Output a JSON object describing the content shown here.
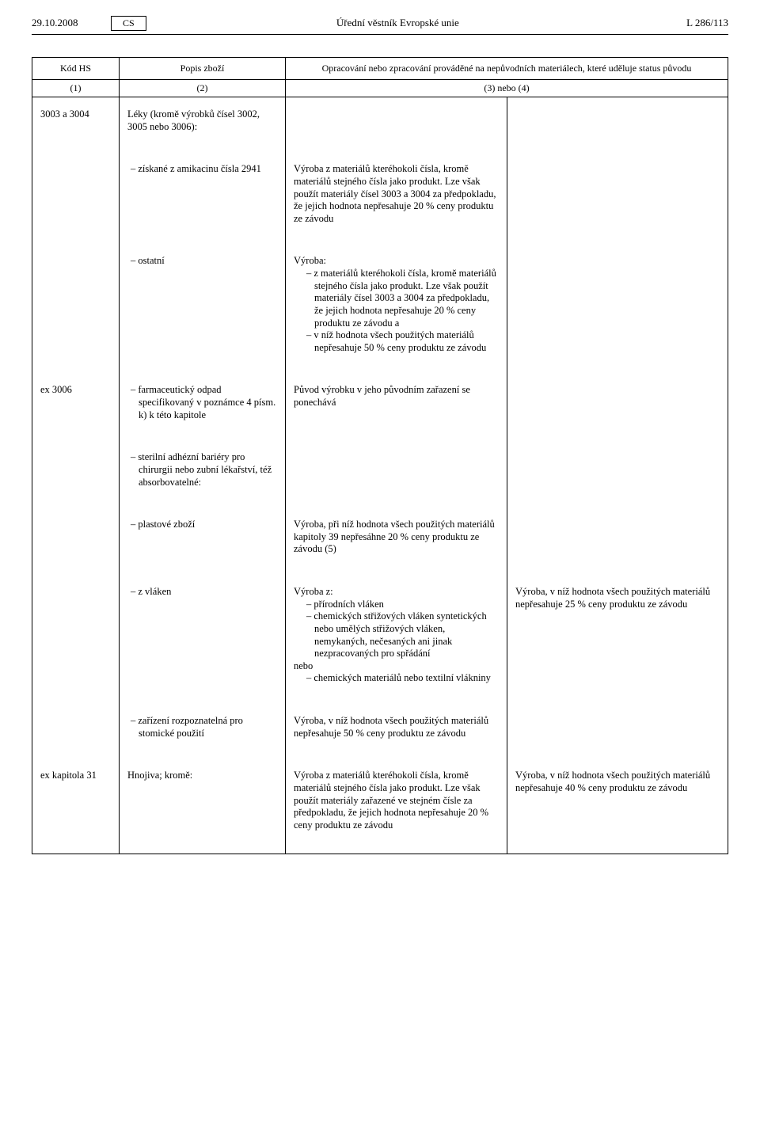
{
  "header": {
    "date": "29.10.2008",
    "lang": "CS",
    "title": "Úřední věstník Evropské unie",
    "page": "L 286/113"
  },
  "thead": {
    "col1": "Kód HS",
    "col2": "Popis zboží",
    "col34": "Opracování nebo zpracování prováděné na nepůvodních materiálech, které uděluje status původu",
    "sub1": "(1)",
    "sub2": "(2)",
    "sub34": "(3) nebo (4)"
  },
  "rows": {
    "r1": {
      "c1": "3003 a 3004",
      "c2": "Léky (kromě výrobků čísel 3002, 3005 nebo 3006):"
    },
    "r2": {
      "c2": "získané z amikacinu čísla 2941",
      "c3": "Výroba z materiálů kteréhokoli čísla, kromě materiálů stejného čísla jako produkt. Lze však použít materiály čísel 3003 a 3004 za předpokladu, že jejich hodnota nepřesahuje 20 % ceny produktu ze závodu"
    },
    "r3": {
      "c2": "ostatní",
      "c3a": "Výroba:",
      "c3b": "z materiálů kteréhokoli čísla, kromě materiálů stejného čísla jako produkt. Lze však použít materiály čísel 3003 a 3004 za předpokladu, že jejich hodnota nepřesahuje 20 % ceny produktu ze závodu a",
      "c3c": "v níž hodnota všech použitých materiálů nepřesahuje 50 % ceny produktu ze závodu"
    },
    "r4": {
      "c1": "ex 3006",
      "c2": "farmaceutický odpad specifikovaný v poznámce 4 písm. k) k této kapitole",
      "c3": "Původ výrobku v jeho původním zařazení se ponechává"
    },
    "r5": {
      "c2": "sterilní adhézní bariéry pro chirurgii nebo zubní lékařství, též absorbovatelné:"
    },
    "r6": {
      "c2": "plastové zboží",
      "c3": "Výroba, při níž hodnota všech použitých materiálů kapitoly 39 nepřesáhne 20 % ceny produktu ze závodu (5)"
    },
    "r7": {
      "c2": "z vláken",
      "c3a": "Výroba z:",
      "c3b": "přírodních vláken",
      "c3c": "chemických střižových vláken syntetických nebo umělých střižových vláken, nemykaných, nečesaných ani jinak nezpracovaných pro spřádání",
      "c3d": "nebo",
      "c3e": "chemických materiálů nebo textilní vlákniny",
      "c4": "Výroba, v níž hodnota všech použitých materiálů nepřesahuje 25 % ceny produktu ze závodu"
    },
    "r8": {
      "c2": "zařízení rozpoznatelná pro stomické použití",
      "c3": "Výroba, v níž hodnota všech použitých materiálů nepřesahuje 50 % ceny produktu ze závodu"
    },
    "r9": {
      "c1": "ex kapitola 31",
      "c2": "Hnojiva; kromě:",
      "c3": "Výroba z materiálů kteréhokoli čísla, kromě materiálů stejného čísla jako produkt. Lze však použít materiály zařazené ve stejném čísle za předpokladu, že jejich hodnota nepřesahuje 20 % ceny produktu ze závodu",
      "c4": "Výroba, v níž hodnota všech použitých materiálů nepřesahuje 40 % ceny produktu ze závodu"
    }
  }
}
